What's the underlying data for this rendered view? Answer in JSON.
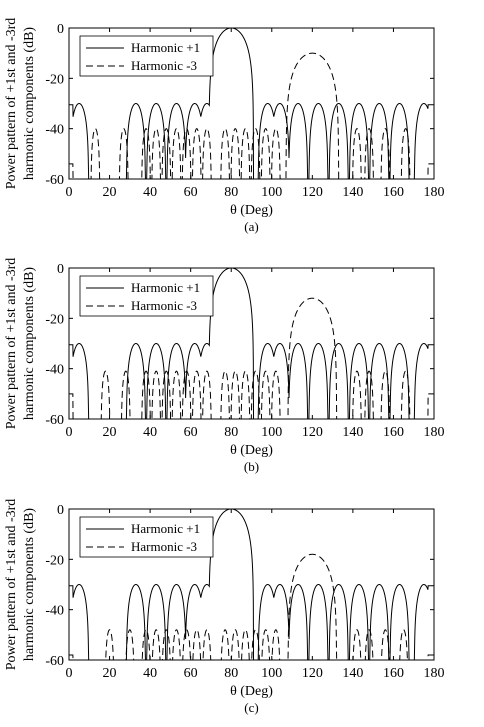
{
  "chart_data": [
    {
      "type": "line",
      "caption": "(a)",
      "xlabel": "θ (Deg)",
      "ylabel_line1": "Power pattern of +1st and -3rd",
      "ylabel_line2": "harmonic components (dB)",
      "xlim": [
        0,
        180
      ],
      "ylim": [
        -60,
        0
      ],
      "xticks": [
        "0",
        "20",
        "40",
        "60",
        "80",
        "100",
        "120",
        "140",
        "160",
        "180"
      ],
      "yticks": [
        "0",
        "-20",
        "-40",
        "-60"
      ],
      "grid": false,
      "legend_position": "top-left",
      "series": [
        {
          "name": "Harmonic +1",
          "style": "solid",
          "main_center": 80,
          "main_halfwidth": 11,
          "sidelobe_level": -30,
          "sidelobe_width": 9.5,
          "sidelobe_centers": [
            5,
            33,
            43,
            53,
            62,
            68,
            98,
            104,
            113,
            123,
            133,
            143,
            153,
            163,
            175
          ],
          "edge_level": -30.5,
          "null_level": -60
        },
        {
          "name": "Harmonic -3",
          "style": "dashed",
          "main_center": 120,
          "main_peak": -10,
          "main_halfwidth": 13,
          "sidelobe_level": -40,
          "sidelobe_width": 4.5,
          "sidelobe_centers": [
            13,
            27,
            38,
            43,
            48,
            53,
            58,
            63,
            68,
            77,
            82,
            87,
            92,
            97,
            102,
            142,
            148,
            156,
            166
          ],
          "edge_level": -54,
          "null_level": -60
        }
      ]
    },
    {
      "type": "line",
      "caption": "(b)",
      "xlabel": "θ (Deg)",
      "ylabel_line1": "Power pattern of +1st and -3rd",
      "ylabel_line2": "harmonic components (dB)",
      "xlim": [
        0,
        180
      ],
      "ylim": [
        -60,
        0
      ],
      "xticks": [
        "0",
        "20",
        "40",
        "60",
        "80",
        "100",
        "120",
        "140",
        "160",
        "180"
      ],
      "yticks": [
        "0",
        "-20",
        "-40",
        "-60"
      ],
      "grid": false,
      "legend_position": "top-left",
      "series": [
        {
          "name": "Harmonic +1",
          "style": "solid",
          "main_center": 80,
          "main_halfwidth": 11,
          "sidelobe_level": -30,
          "sidelobe_width": 9.5,
          "sidelobe_centers": [
            5,
            33,
            43,
            53,
            62,
            68,
            98,
            104,
            113,
            123,
            133,
            143,
            153,
            163,
            175
          ],
          "edge_level": -30.5,
          "null_level": -60
        },
        {
          "name": "Harmonic -3",
          "style": "dashed",
          "main_center": 120,
          "main_peak": -12,
          "main_halfwidth": 12,
          "sidelobe_level": -41,
          "sidelobe_width": 4.5,
          "sidelobe_centers": [
            18,
            28,
            38,
            43,
            48,
            53,
            58,
            63,
            68,
            77,
            82,
            87,
            92,
            97,
            102,
            142,
            148,
            156,
            166
          ],
          "edge_level": -50,
          "null_level": -60
        }
      ]
    },
    {
      "type": "line",
      "caption": "(c)",
      "xlabel": "θ (Deg)",
      "ylabel_line1": "Power pattern of +1st and -3rd",
      "ylabel_line2": "harmonic components (dB)",
      "xlim": [
        0,
        180
      ],
      "ylim": [
        -60,
        0
      ],
      "xticks": [
        "0",
        "20",
        "40",
        "60",
        "80",
        "100",
        "120",
        "140",
        "160",
        "180"
      ],
      "yticks": [
        "0",
        "-20",
        "-40",
        "-60"
      ],
      "grid": false,
      "legend_position": "top-left",
      "series": [
        {
          "name": "Harmonic +1",
          "style": "solid",
          "main_center": 80,
          "main_halfwidth": 11,
          "sidelobe_level": -30,
          "sidelobe_width": 9.5,
          "sidelobe_centers": [
            5,
            33,
            43,
            53,
            62,
            68,
            98,
            104,
            113,
            123,
            133,
            143,
            153,
            163,
            175
          ],
          "edge_level": -30.5,
          "null_level": -60
        },
        {
          "name": "Harmonic -3",
          "style": "dashed",
          "main_center": 120,
          "main_peak": -18,
          "main_halfwidth": 12,
          "sidelobe_level": -48,
          "sidelobe_width": 4.5,
          "sidelobe_centers": [
            20,
            30,
            38,
            43,
            48,
            53,
            58,
            63,
            68,
            77,
            82,
            87,
            92,
            97,
            102,
            142,
            148,
            156,
            165
          ],
          "edge_level": -58,
          "null_level": -60
        }
      ]
    }
  ]
}
